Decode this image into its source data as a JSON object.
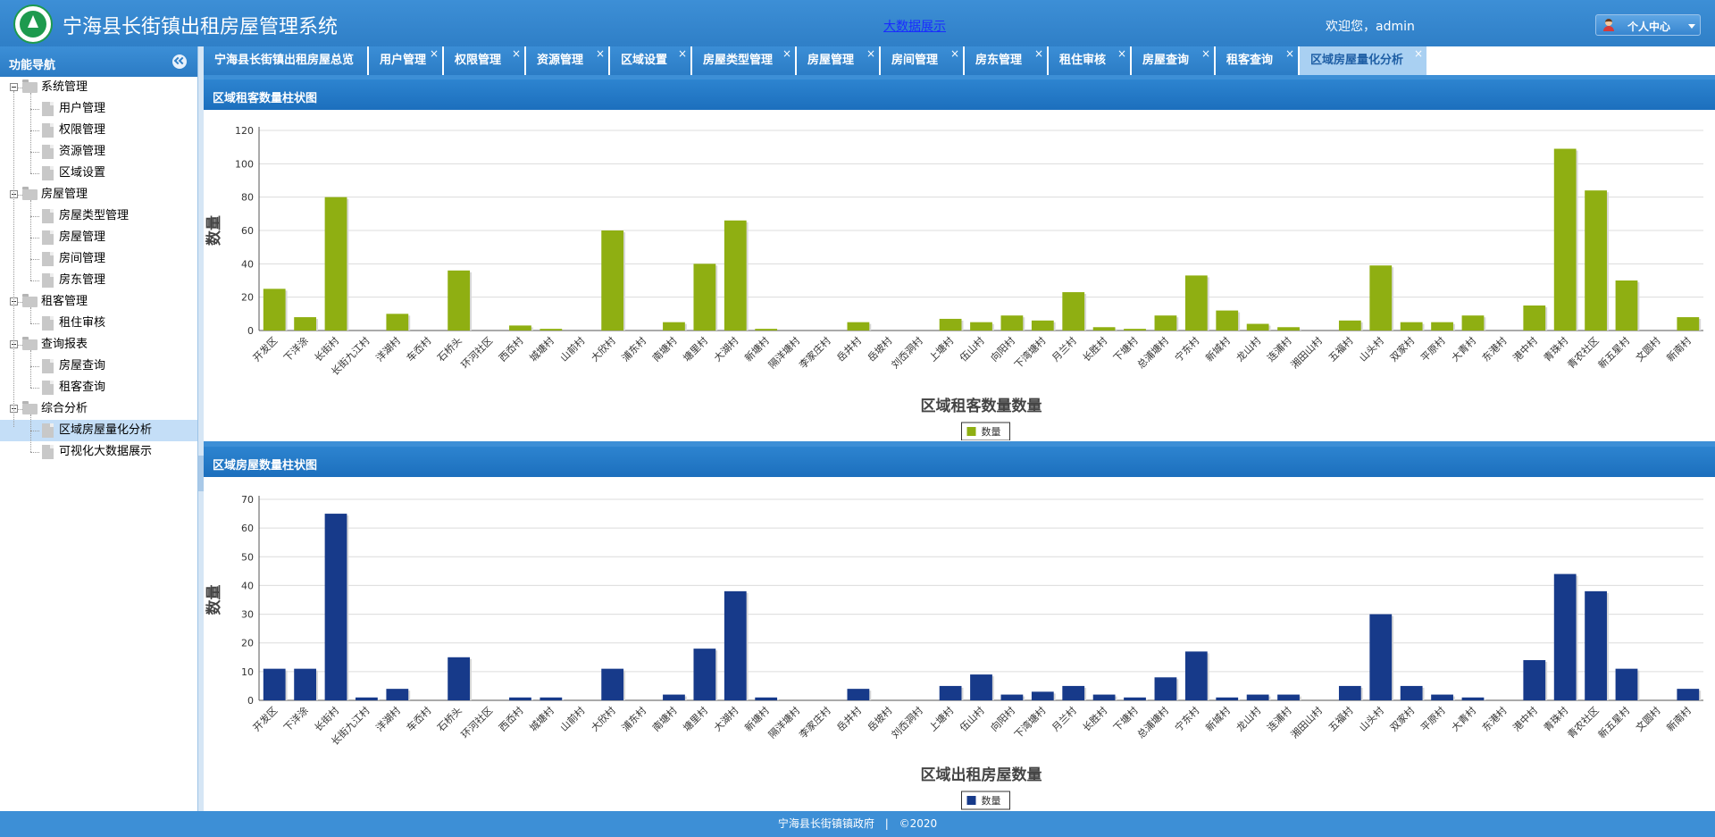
{
  "header": {
    "title": "宁海县长街镇出租房屋管理系统",
    "bigdata_link": "大数据展示",
    "welcome": "欢迎您，admin",
    "personal_center": "个人中心"
  },
  "sidebar": {
    "title": "功能导航",
    "groups": [
      {
        "label": "系统管理",
        "items": [
          "用户管理",
          "权限管理",
          "资源管理",
          "区域设置"
        ]
      },
      {
        "label": "房屋管理",
        "items": [
          "房屋类型管理",
          "房屋管理",
          "房间管理",
          "房东管理"
        ]
      },
      {
        "label": "租客管理",
        "items": [
          "租住审核"
        ]
      },
      {
        "label": "查询报表",
        "items": [
          "房屋查询",
          "租客查询"
        ]
      },
      {
        "label": "综合分析",
        "items": [
          "区域房屋量化分析",
          "可视化大数据展示"
        ]
      }
    ],
    "selected": "区域房屋量化分析"
  },
  "tabs": [
    {
      "label": "宁海县长街镇出租房屋总览",
      "closable": false
    },
    {
      "label": "用户管理",
      "closable": true
    },
    {
      "label": "权限管理",
      "closable": true
    },
    {
      "label": "资源管理",
      "closable": true
    },
    {
      "label": "区域设置",
      "closable": true
    },
    {
      "label": "房屋类型管理",
      "closable": true
    },
    {
      "label": "房屋管理",
      "closable": true
    },
    {
      "label": "房间管理",
      "closable": true
    },
    {
      "label": "房东管理",
      "closable": true
    },
    {
      "label": "租住审核",
      "closable": true
    },
    {
      "label": "房屋查询",
      "closable": true
    },
    {
      "label": "租客查询",
      "closable": true
    },
    {
      "label": "区域房屋量化分析",
      "closable": true,
      "active": true
    }
  ],
  "panels": {
    "tenant_title": "区域租客数量柱状图",
    "house_title": "区域房屋数量柱状图"
  },
  "footer": {
    "text": "宁海县长街镇镇政府",
    "separator": "|",
    "copyright": "©2020"
  },
  "chart_data": [
    {
      "type": "bar",
      "xlabel": "区域租客数量数量",
      "ylabel": "数量",
      "ylim": [
        0,
        120
      ],
      "yticks": [
        0,
        20,
        40,
        60,
        80,
        100,
        120
      ],
      "legend": "bottom-center",
      "grid": true,
      "color": "#8faf12",
      "categories": [
        "开发区",
        "下洋涂",
        "长街村",
        "长街九江村",
        "洋湖村",
        "车岙村",
        "石桥头",
        "环河社区",
        "西岙村",
        "城塘村",
        "山前村",
        "大欣村",
        "浦东村",
        "南塘村",
        "塘里村",
        "大湖村",
        "新塘村",
        "隔洋塘村",
        "李家庄村",
        "岳井村",
        "岳坡村",
        "刘岙洞村",
        "上塘村",
        "伍山村",
        "向阳村",
        "下湾塘村",
        "月兰村",
        "长胜村",
        "下塘村",
        "总浦塘村",
        "宁东村",
        "新城村",
        "龙山村",
        "连浦村",
        "湘田山村",
        "五福村",
        "山头村",
        "双家村",
        "平原村",
        "大青村",
        "东港村",
        "港中村",
        "青珠村",
        "青农社区",
        "新五星村",
        "文圆村",
        "新南村"
      ],
      "series": [
        {
          "name": "数量",
          "values": [
            25,
            8,
            80,
            0,
            10,
            0,
            36,
            0,
            3,
            1,
            0,
            60,
            0,
            5,
            40,
            66,
            1,
            0,
            0,
            5,
            0,
            0,
            7,
            5,
            9,
            6,
            23,
            2,
            1,
            9,
            33,
            12,
            4,
            2,
            0,
            6,
            39,
            5,
            5,
            9,
            0,
            15,
            109,
            84,
            30,
            0,
            8
          ]
        }
      ]
    },
    {
      "type": "bar",
      "xlabel": "区域出租房屋数量",
      "ylabel": "数量",
      "ylim": [
        0,
        70
      ],
      "yticks": [
        0,
        10,
        20,
        30,
        40,
        50,
        60,
        70
      ],
      "legend": "bottom-center",
      "grid": true,
      "color": "#173a8a",
      "categories": [
        "开发区",
        "下洋涂",
        "长街村",
        "长街九江村",
        "洋湖村",
        "车岙村",
        "石桥头",
        "环河社区",
        "西岙村",
        "城塘村",
        "山前村",
        "大欣村",
        "浦东村",
        "南塘村",
        "塘里村",
        "大湖村",
        "新塘村",
        "隔洋塘村",
        "李家庄村",
        "岳井村",
        "岳坡村",
        "刘岙洞村",
        "上塘村",
        "伍山村",
        "向阳村",
        "下湾塘村",
        "月兰村",
        "长胜村",
        "下塘村",
        "总浦塘村",
        "宁东村",
        "新城村",
        "龙山村",
        "连浦村",
        "湘田山村",
        "五福村",
        "山头村",
        "双家村",
        "平原村",
        "大青村",
        "东港村",
        "港中村",
        "青珠村",
        "青农社区",
        "新五星村",
        "文圆村",
        "新南村"
      ],
      "series": [
        {
          "name": "数量",
          "values": [
            11,
            11,
            65,
            1,
            4,
            0,
            15,
            0,
            1,
            1,
            0,
            11,
            0,
            2,
            18,
            38,
            1,
            0,
            0,
            4,
            0,
            0,
            5,
            9,
            2,
            3,
            5,
            2,
            1,
            8,
            17,
            1,
            2,
            2,
            0,
            5,
            30,
            5,
            2,
            1,
            0,
            14,
            44,
            38,
            11,
            0,
            4
          ]
        }
      ]
    }
  ]
}
